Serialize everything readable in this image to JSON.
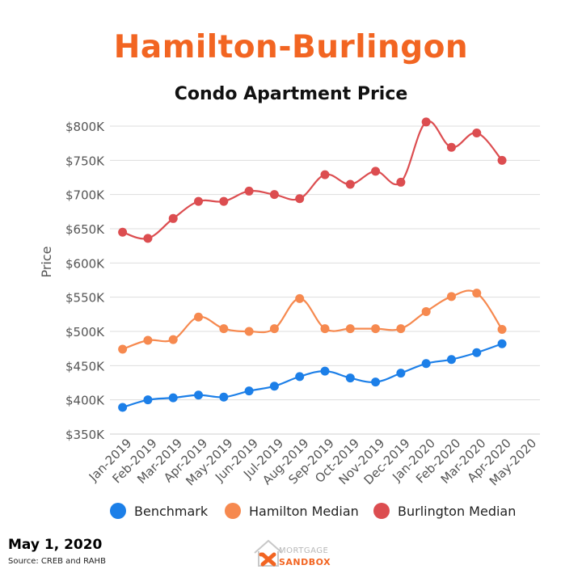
{
  "header": {
    "title": "Hamilton-Burlingon"
  },
  "footer": {
    "date": "May 1, 2020",
    "source": "Source: CREB and RAHB"
  },
  "logo": {
    "line1": "MORTGAGE",
    "line2": "SANDBOX"
  },
  "colors": {
    "title": "#f26522",
    "benchmark": "#1c7fe8",
    "hamilton": "#f6894f",
    "burlington": "#dc4d50",
    "grid": "#dddddd",
    "text": "#555555"
  },
  "chart_data": {
    "type": "line",
    "title": "Condo Apartment Price",
    "xlabel": "",
    "ylabel": "Price",
    "ylim": [
      350000,
      800000
    ],
    "yticks": [
      800000,
      750000,
      700000,
      650000,
      600000,
      550000,
      500000,
      450000,
      400000,
      350000
    ],
    "ytick_labels": [
      "$800K",
      "$750K",
      "$700K",
      "$650K",
      "$600K",
      "$550K",
      "$500K",
      "$450K",
      "$400K",
      "$350K"
    ],
    "categories": [
      "Jan-2019",
      "Feb-2019",
      "Mar-2019",
      "Apr-2019",
      "May-2019",
      "Jun-2019",
      "Jul-2019",
      "Aug-2019",
      "Sep-2019",
      "Oct-2019",
      "Nov-2019",
      "Dec-2019",
      "Jan-2020",
      "Feb-2020",
      "Mar-2020",
      "Apr-2020",
      "May-2020"
    ],
    "grid": true,
    "legend": "bottom",
    "series": [
      {
        "name": "Benchmark",
        "color": "#1c7fe8",
        "values": [
          389000,
          400000,
          403000,
          407000,
          404000,
          413000,
          420000,
          434000,
          442000,
          432000,
          426000,
          439000,
          453000,
          459000,
          469000,
          482000,
          null
        ]
      },
      {
        "name": "Hamilton Median",
        "color": "#f6894f",
        "values": [
          474000,
          487000,
          488000,
          521000,
          504000,
          500000,
          504000,
          548000,
          504000,
          504000,
          504000,
          504000,
          529000,
          551000,
          556000,
          503000,
          null
        ]
      },
      {
        "name": "Burlington Median",
        "color": "#dc4d50",
        "values": [
          645000,
          636000,
          665000,
          690000,
          690000,
          705000,
          700000,
          694000,
          729000,
          715000,
          734000,
          718000,
          806000,
          769000,
          790000,
          750000,
          null
        ]
      }
    ]
  }
}
